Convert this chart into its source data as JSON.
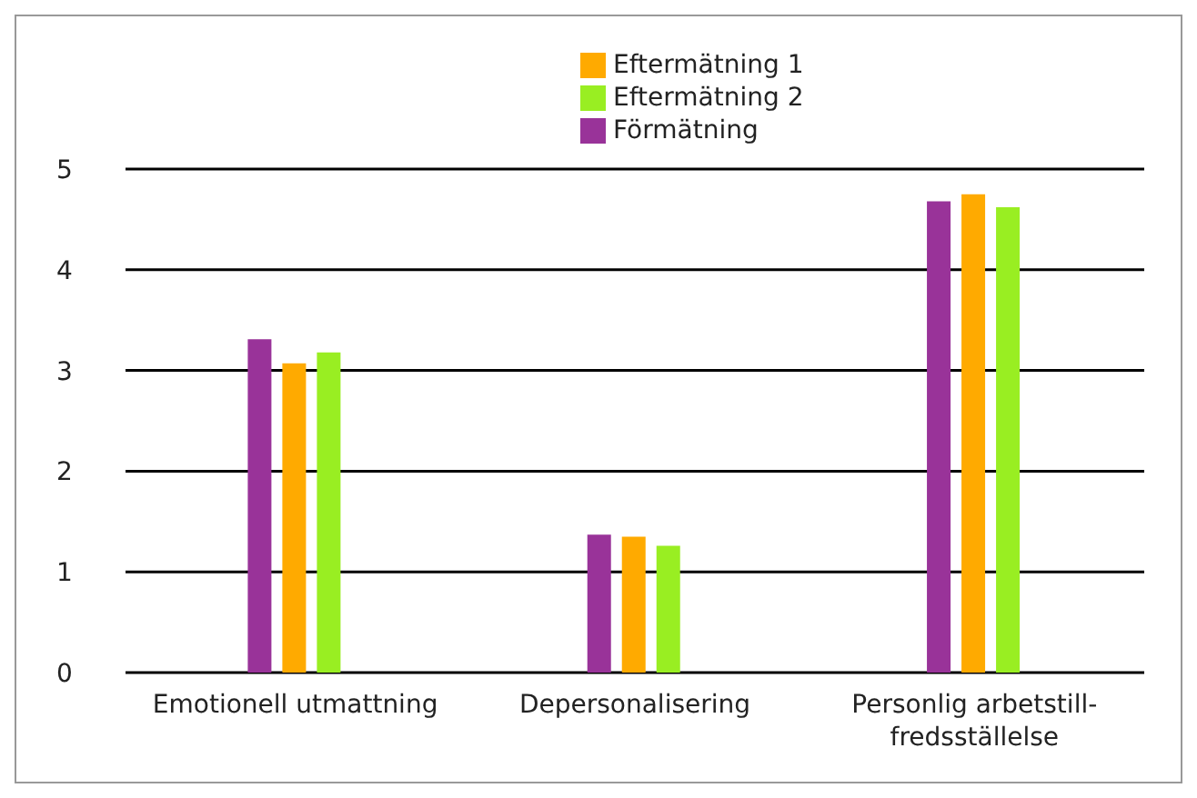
{
  "chart_data": {
    "type": "bar",
    "categories": [
      "Emotionell utmattning",
      "Depersonalisering",
      "Personlig arbetstill-\nfredsställelse"
    ],
    "series": [
      {
        "name": "Förmätning",
        "color": "#993399",
        "values": [
          3.31,
          1.37,
          4.68
        ]
      },
      {
        "name": "Eftermätning 1",
        "color": "#ffaa00",
        "values": [
          3.07,
          1.35,
          4.75
        ]
      },
      {
        "name": "Eftermätning 2",
        "color": "#99ee22",
        "values": [
          3.18,
          1.26,
          4.62
        ]
      }
    ],
    "ylim": [
      0,
      5
    ],
    "yticks": [
      0,
      1,
      2,
      3,
      4,
      5
    ],
    "grid": "y",
    "legend": "top"
  }
}
